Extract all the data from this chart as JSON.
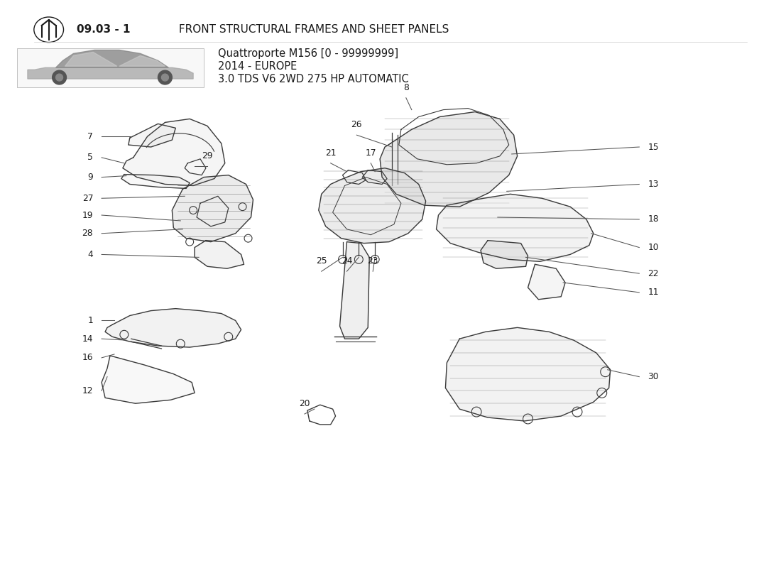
{
  "title_bold": "09.03 - 1",
  "title_rest": " FRONT STRUCTURAL FRAMES AND SHEET PANELS",
  "car_info_line1": "Quattroporte M156 [0 - 99999999]",
  "car_info_line2": "2014 - EUROPE",
  "car_info_line3": "3.0 TDS V6 2WD 275 HP AUTOMATIC",
  "bg_color": "#ffffff",
  "text_color": "#1a1a1a",
  "draw_color": "#3a3a3a",
  "label_color": "#1a1a1a",
  "line_color": "#555555"
}
